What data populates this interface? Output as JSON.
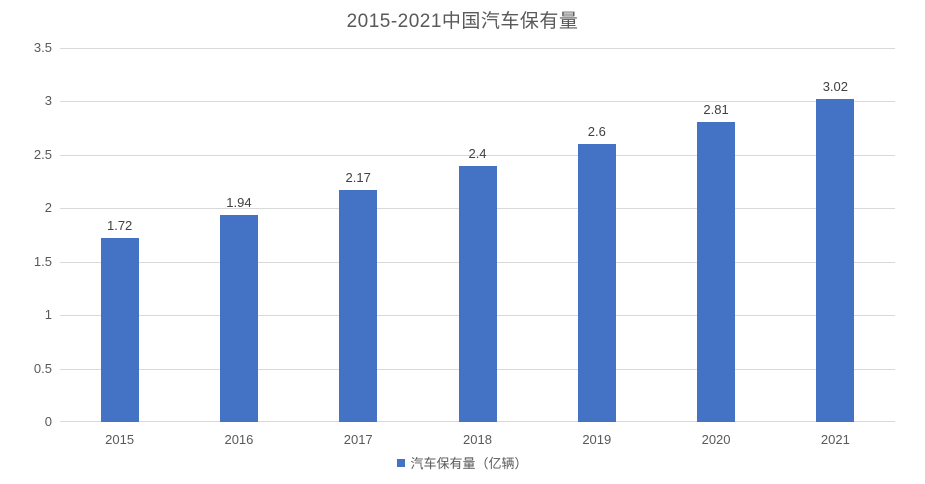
{
  "chart_data": {
    "type": "bar",
    "title": "2015-2021中国汽车保有量",
    "categories": [
      "2015",
      "2016",
      "2017",
      "2018",
      "2019",
      "2020",
      "2021"
    ],
    "series": [
      {
        "name": "汽车保有量（亿辆）",
        "values": [
          1.72,
          1.94,
          2.17,
          2.4,
          2.6,
          2.81,
          3.02
        ],
        "value_labels": [
          "1.72",
          "1.94",
          "2.17",
          "2.4",
          "2.6",
          "2.81",
          "3.02"
        ]
      }
    ],
    "xlabel": "",
    "ylabel": "",
    "ylim": [
      0,
      3.5
    ],
    "y_tick_labels": [
      "0",
      "0.5",
      "1",
      "1.5",
      "2",
      "2.5",
      "3",
      "3.5"
    ],
    "grid": true,
    "legend_position": "bottom",
    "colors": {
      "bar": "#4472c4",
      "gridline": "#d9d9d9",
      "title_text": "#595959",
      "axis_text": "#595959",
      "data_label_text": "#404040"
    }
  }
}
